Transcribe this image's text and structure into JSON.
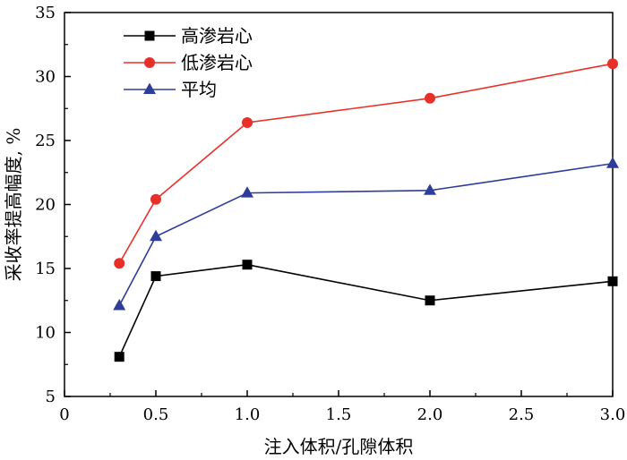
{
  "chart_data": {
    "type": "line",
    "title": "",
    "xlabel": "注入体积/孔隙体积",
    "ylabel": "采收率提高幅度, %",
    "xlim": [
      0,
      3.0
    ],
    "ylim": [
      5,
      35
    ],
    "xticks": [
      "0",
      "0.5",
      "1.0",
      "1.5",
      "2.0",
      "2.5",
      "3.0"
    ],
    "yticks": [
      "5",
      "10",
      "15",
      "20",
      "25",
      "30",
      "35"
    ],
    "grid": false,
    "legend_position": "top-left",
    "x": [
      0.3,
      0.5,
      1.0,
      2.0,
      3.0
    ],
    "series": [
      {
        "name": "高渗岩心",
        "values": [
          8.1,
          14.4,
          15.3,
          12.5,
          14.0
        ],
        "color": "#000000",
        "marker": "square"
      },
      {
        "name": "低渗岩心",
        "values": [
          15.4,
          20.4,
          26.4,
          28.3,
          31.0
        ],
        "color": "#e8302a",
        "marker": "circle"
      },
      {
        "name": "平均",
        "values": [
          12.1,
          17.5,
          20.9,
          21.1,
          23.2
        ],
        "color": "#2f3d9a",
        "marker": "triangle"
      }
    ]
  }
}
